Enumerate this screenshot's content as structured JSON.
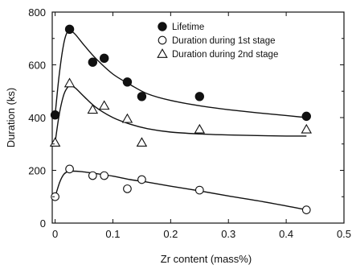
{
  "chart_data": {
    "type": "scatter",
    "title": "",
    "xlabel": "Zr content    (mass%)",
    "ylabel": "Duration    (ks)",
    "xlim": [
      -0.005,
      0.5
    ],
    "ylim": [
      0,
      800
    ],
    "xticks": [
      0,
      0.1,
      0.2,
      0.3,
      0.4,
      0.5
    ],
    "xtick_labels": [
      "0",
      "0.1",
      "0.2",
      "0.3",
      "0.4",
      "0.5"
    ],
    "yticks": [
      0,
      200,
      400,
      600,
      800
    ],
    "ytick_labels": [
      "0",
      "200",
      "400",
      "600",
      "800"
    ],
    "grid": false,
    "legend_position": "top-right",
    "series": [
      {
        "name": "Lifetime",
        "marker": "filled-circle",
        "x": [
          0,
          0.025,
          0.065,
          0.085,
          0.125,
          0.15,
          0.25,
          0.435
        ],
        "y": [
          410,
          735,
          610,
          625,
          535,
          480,
          480,
          405
        ],
        "fit_curve": {
          "x": [
            0,
            0.007,
            0.014,
            0.02,
            0.026,
            0.035,
            0.05,
            0.07,
            0.1,
            0.13,
            0.16,
            0.2,
            0.25,
            0.3,
            0.35,
            0.4,
            0.435
          ],
          "y": [
            410,
            560,
            670,
            720,
            730,
            715,
            675,
            625,
            565,
            525,
            490,
            465,
            445,
            430,
            418,
            408,
            400
          ]
        }
      },
      {
        "name": "Duration during 1st stage",
        "marker": "open-circle",
        "x": [
          0,
          0.025,
          0.065,
          0.085,
          0.125,
          0.15,
          0.25,
          0.435
        ],
        "y": [
          100,
          205,
          180,
          180,
          130,
          165,
          125,
          50
        ],
        "fit_curve": {
          "x": [
            0,
            0.008,
            0.015,
            0.022,
            0.03,
            0.045,
            0.07,
            0.1,
            0.13,
            0.16,
            0.2,
            0.25,
            0.3,
            0.35,
            0.4,
            0.435
          ],
          "y": [
            100,
            155,
            185,
            195,
            197,
            195,
            188,
            178,
            165,
            155,
            140,
            122,
            103,
            85,
            65,
            50
          ]
        }
      },
      {
        "name": "Duration during 2nd stage",
        "marker": "open-triangle",
        "x": [
          0,
          0.025,
          0.065,
          0.085,
          0.125,
          0.15,
          0.25,
          0.435
        ],
        "y": [
          305,
          530,
          430,
          445,
          395,
          305,
          355,
          355
        ],
        "fit_curve": {
          "x": [
            0,
            0.007,
            0.014,
            0.02,
            0.026,
            0.035,
            0.05,
            0.07,
            0.1,
            0.13,
            0.16,
            0.2,
            0.25,
            0.3,
            0.35,
            0.4,
            0.435
          ],
          "y": [
            305,
            410,
            480,
            510,
            520,
            512,
            480,
            440,
            400,
            375,
            358,
            345,
            338,
            334,
            332,
            330,
            330
          ]
        }
      }
    ]
  }
}
